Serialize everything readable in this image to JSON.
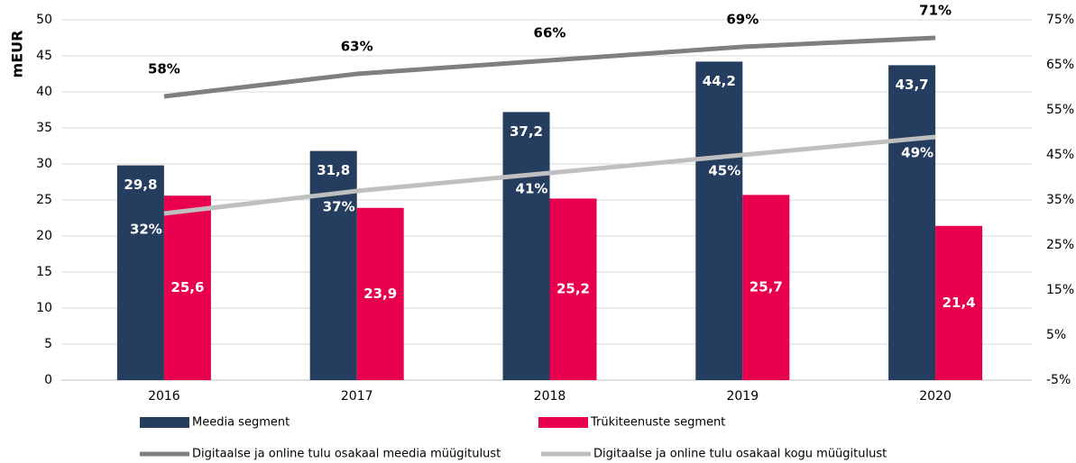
{
  "chart_data": {
    "type": "bar",
    "y_label": "mEUR",
    "categories": [
      "2016",
      "2017",
      "2018",
      "2019",
      "2020"
    ],
    "series": [
      {
        "name": "Meedia segment",
        "type": "bar",
        "color": "#253d5e",
        "values": [
          29.8,
          31.8,
          37.2,
          44.2,
          43.7
        ],
        "value_labels": [
          "29,8",
          "31,8",
          "37,2",
          "44,2",
          "43,7"
        ]
      },
      {
        "name": "Trükiteenuste segment",
        "type": "bar",
        "color": "#e8004f",
        "values": [
          25.6,
          23.9,
          25.2,
          25.7,
          21.4
        ],
        "value_labels": [
          "25,6",
          "23,9",
          "25,2",
          "25,7",
          "21,4"
        ]
      },
      {
        "name": "Digitaalse ja online tulu osakaal meedia müügitulust",
        "type": "line",
        "axis": "y2",
        "color": "#7f7f7f",
        "values": [
          58,
          63,
          66,
          69,
          71
        ],
        "value_labels": [
          "58%",
          "63%",
          "66%",
          "69%",
          "71%"
        ]
      },
      {
        "name": "Digitaalse ja online tulu osakaal kogu müügitulust",
        "type": "line",
        "axis": "y2",
        "color": "#bfbfbf",
        "values": [
          32,
          37,
          41,
          45,
          49
        ],
        "value_labels": [
          "32%",
          "37%",
          "41%",
          "45%",
          "49%"
        ]
      }
    ],
    "ylim": [
      0,
      50
    ],
    "yticks": [
      0,
      5,
      10,
      15,
      20,
      25,
      30,
      35,
      40,
      45,
      50
    ],
    "y2lim": [
      -5,
      75
    ],
    "y2ticks": [
      {
        "value": -5,
        "label": "-5%"
      },
      {
        "value": 5,
        "label": "5%"
      },
      {
        "value": 15,
        "label": "15%"
      },
      {
        "value": 25,
        "label": "25%"
      },
      {
        "value": 35,
        "label": "35%"
      },
      {
        "value": 45,
        "label": "45%"
      },
      {
        "value": 55,
        "label": "55%"
      },
      {
        "value": 65,
        "label": "65%"
      },
      {
        "value": 75,
        "label": "75%"
      }
    ],
    "grid": true,
    "legend": "bottom"
  }
}
